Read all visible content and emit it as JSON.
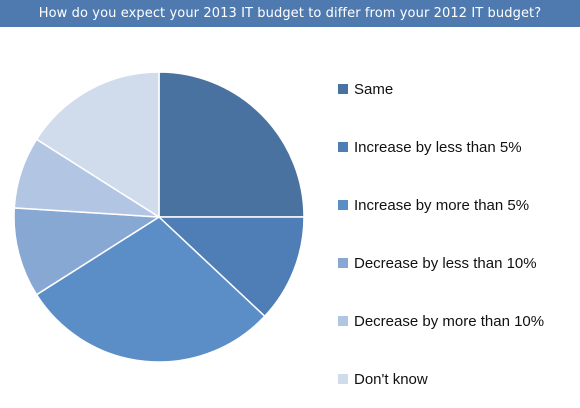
{
  "title": "How do you expect your 2013 IT budget to differ from your 2012 IT budget?",
  "colors": {
    "title_bar": "#4f7ab0",
    "title_text": "#ffffff"
  },
  "chart_data": {
    "type": "pie",
    "title": "How do you expect your 2013 IT budget to differ from your 2012 IT budget?",
    "start_angle_deg": 0,
    "direction": "clockwise",
    "legend_position": "right",
    "slices": [
      {
        "label": "Same",
        "value": 25,
        "color": "#4a72a0"
      },
      {
        "label": "Increase by less than 5%",
        "value": 12,
        "color": "#4f7eb6"
      },
      {
        "label": "Increase by more than 5%",
        "value": 29,
        "color": "#5b8ec7"
      },
      {
        "label": "Decrease by less than 10%",
        "value": 10,
        "color": "#88a8d4"
      },
      {
        "label": "Decrease by more than 10%",
        "value": 8,
        "color": "#b2c5e2"
      },
      {
        "label": "Don't know",
        "value": 16,
        "color": "#d0dbec"
      }
    ]
  }
}
